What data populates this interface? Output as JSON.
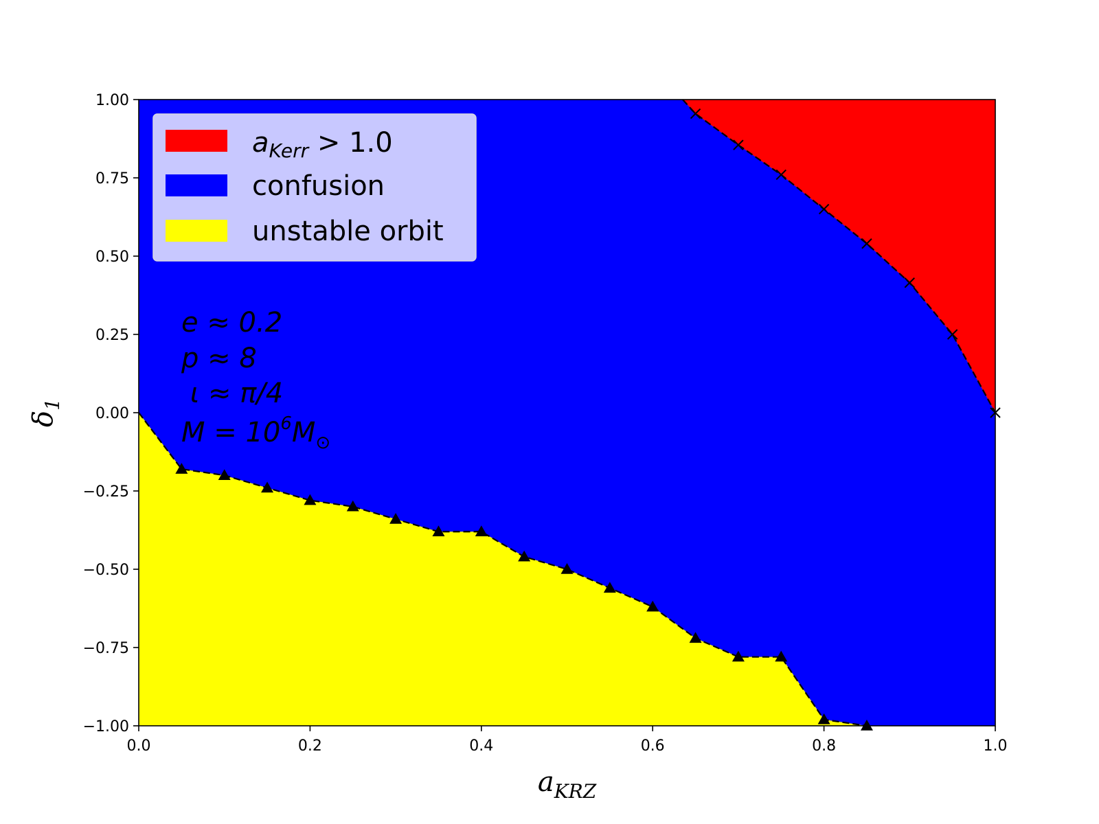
{
  "chart_data": {
    "type": "area",
    "xlabel": "a",
    "xlabel_sub": "KRZ",
    "ylabel": "δ",
    "ylabel_sub": "1",
    "xlim": [
      0.0,
      1.0
    ],
    "ylim": [
      -1.0,
      1.0
    ],
    "x_ticks": [
      0.0,
      0.2,
      0.4,
      0.6,
      0.8,
      1.0
    ],
    "x_tick_labels": [
      "0.0",
      "0.2",
      "0.4",
      "0.6",
      "0.8",
      "1.0"
    ],
    "y_ticks": [
      1.0,
      0.75,
      0.5,
      0.25,
      0.0,
      -0.25,
      -0.5,
      -0.75,
      -1.0
    ],
    "y_tick_labels": [
      "1.00",
      "0.75",
      "0.50",
      "0.25",
      "0.00",
      "−0.25",
      "−0.50",
      "−0.75",
      "−1.00"
    ],
    "grid": false,
    "legend_position": "top-left",
    "series": [
      {
        "name": "a",
        "name_sub": "Kerr",
        "name_rest": " > 1.0",
        "color": "#ff0000",
        "marker": "x",
        "boundary": [
          {
            "x": 0.635,
            "y": 1.0
          },
          {
            "x": 0.65,
            "y": 0.955
          },
          {
            "x": 0.7,
            "y": 0.855
          },
          {
            "x": 0.75,
            "y": 0.76
          },
          {
            "x": 0.8,
            "y": 0.65
          },
          {
            "x": 0.85,
            "y": 0.54
          },
          {
            "x": 0.9,
            "y": 0.415
          },
          {
            "x": 0.95,
            "y": 0.25
          },
          {
            "x": 1.0,
            "y": 0.0
          }
        ]
      },
      {
        "name": "confusion",
        "color": "#0000ff"
      },
      {
        "name": "unstable orbit",
        "color": "#ffff00",
        "marker": "triangle",
        "boundary": [
          {
            "x": 0.0,
            "y": 0.0
          },
          {
            "x": 0.05,
            "y": -0.18
          },
          {
            "x": 0.1,
            "y": -0.2
          },
          {
            "x": 0.15,
            "y": -0.24
          },
          {
            "x": 0.2,
            "y": -0.28
          },
          {
            "x": 0.25,
            "y": -0.3
          },
          {
            "x": 0.3,
            "y": -0.34
          },
          {
            "x": 0.35,
            "y": -0.38
          },
          {
            "x": 0.4,
            "y": -0.38
          },
          {
            "x": 0.45,
            "y": -0.46
          },
          {
            "x": 0.5,
            "y": -0.5
          },
          {
            "x": 0.55,
            "y": -0.56
          },
          {
            "x": 0.6,
            "y": -0.62
          },
          {
            "x": 0.65,
            "y": -0.72
          },
          {
            "x": 0.7,
            "y": -0.78
          },
          {
            "x": 0.75,
            "y": -0.78
          },
          {
            "x": 0.8,
            "y": -0.98
          },
          {
            "x": 0.85,
            "y": -1.0
          }
        ]
      }
    ],
    "annotations": [
      {
        "text": "e ≈ 0.2"
      },
      {
        "text": "p ≈ 8"
      },
      {
        "text": " ι ≈ π/4"
      },
      {
        "text": "M = 10",
        "sup": "6",
        "after": "M",
        "sub": "⊙"
      }
    ]
  }
}
